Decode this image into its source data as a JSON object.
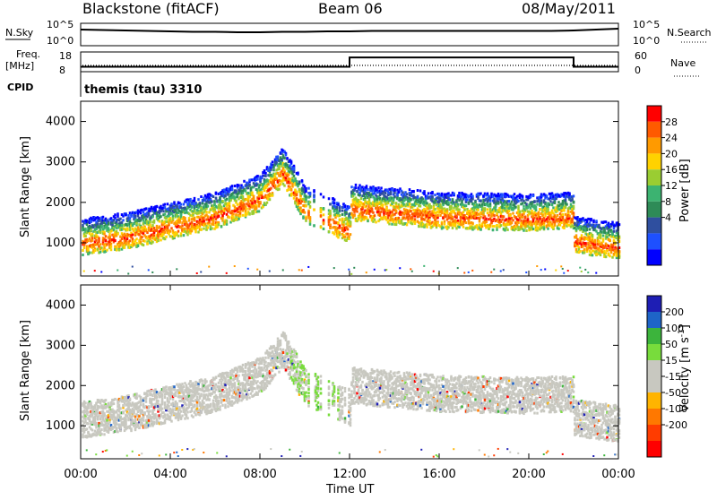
{
  "header": {
    "station": "Blackstone (fitACF)",
    "beam": "Beam 06",
    "date": "08/May/2011"
  },
  "noise_panel": {
    "left_label": "N.Sky",
    "right_label": "N.Search",
    "tick_top": "10^5",
    "tick_bottom": "10^0"
  },
  "freq_panel": {
    "left_label_1": "Freq.",
    "left_label_2": "[MHz]",
    "right_label": "Nave",
    "left_ticks": [
      "18",
      "8"
    ],
    "right_ticks": [
      "60",
      "0"
    ]
  },
  "cpid": {
    "label": "CPID",
    "value": "themis (tau) 3310"
  },
  "power_panel": {
    "ylabel": "Slant Range [km]",
    "yticks": [
      "4000",
      "3000",
      "2000",
      "1000"
    ],
    "colorbar_title": "Power [dB]",
    "colorbar_ticks": [
      "28",
      "24",
      "20",
      "16",
      "12",
      "8",
      "4"
    ]
  },
  "velocity_panel": {
    "ylabel": "Slant Range [km]",
    "yticks": [
      "4000",
      "3000",
      "2000",
      "1000"
    ],
    "colorbar_title": "Velocity [m s",
    "colorbar_title_sup": "-1",
    "colorbar_title_end": "]",
    "colorbar_ticks": [
      "200",
      "100",
      "50",
      "15",
      "-15",
      "-50",
      "-100",
      "-200"
    ]
  },
  "xaxis": {
    "label": "Time UT",
    "ticks": [
      "00:00",
      "04:00",
      "08:00",
      "12:00",
      "16:00",
      "20:00",
      "00:00"
    ]
  },
  "colors": {
    "power_scale": [
      "#ff0000",
      "#ff5a00",
      "#ff9a00",
      "#ffd200",
      "#9acd32",
      "#3cb371",
      "#2e8b57",
      "#2f4f9f",
      "#1e50ff",
      "#0000ff"
    ],
    "velocity_scale": [
      "#1e1eb4",
      "#1e64c8",
      "#3cb43c",
      "#78dc3c",
      "#c8c8c0",
      "#c8c8c0",
      "#ffb400",
      "#ff7800",
      "#ff3c00",
      "#ff0000"
    ],
    "ground_scatter": "#c8c8c0"
  },
  "chart_data": [
    {
      "type": "line",
      "title": "",
      "series": [
        {
          "name": "N.Sky",
          "x": [
            0,
            1,
            2,
            3,
            4,
            5,
            6,
            7,
            8,
            9,
            10,
            11,
            12,
            13,
            14,
            15,
            16,
            17,
            18,
            19,
            20,
            21,
            22,
            23,
            24
          ],
          "values": [
            3.6,
            3.5,
            3.4,
            3.3,
            3.2,
            3.1,
            3.1,
            3.0,
            3.0,
            3.1,
            3.1,
            3.2,
            3.2,
            3.3,
            3.3,
            3.3,
            3.3,
            3.3,
            3.3,
            3.3,
            3.3,
            3.3,
            3.4,
            3.6,
            3.8
          ]
        }
      ],
      "xlim": [
        0,
        24
      ],
      "ylim": [
        0,
        5
      ]
    },
    {
      "type": "line",
      "series": [
        {
          "name": "Freq.",
          "x": [
            0,
            12,
            12,
            22,
            22,
            24
          ],
          "values": [
            10.5,
            10.5,
            15.2,
            15.2,
            10.5,
            10.5
          ]
        },
        {
          "name": "Nave",
          "x": [
            0,
            24
          ],
          "values": [
            15,
            15
          ]
        }
      ],
      "xlim": [
        0,
        24
      ],
      "ylim": [
        8,
        18
      ]
    },
    {
      "type": "heatmap",
      "xlabel": "Time UT",
      "ylabel": "Slant Range [km]",
      "ylim": [
        180,
        4500
      ],
      "xlim": [
        0,
        24
      ],
      "colorbar": "Power [dB]",
      "main_band_range_km": [
        [
          0,
          1000
        ],
        [
          2,
          1150
        ],
        [
          4,
          1400
        ],
        [
          6,
          1650
        ],
        [
          8,
          2100
        ],
        [
          9,
          2750
        ],
        [
          10,
          1800
        ],
        [
          12,
          1300
        ],
        [
          12,
          1850
        ],
        [
          16,
          1650
        ],
        [
          20,
          1600
        ],
        [
          22,
          1650
        ],
        [
          22,
          1050
        ],
        [
          24,
          900
        ]
      ]
    },
    {
      "type": "heatmap",
      "xlabel": "Time UT",
      "ylabel": "Slant Range [km]",
      "ylim": [
        180,
        4500
      ],
      "xlim": [
        0,
        24
      ],
      "colorbar": "Velocity [m s-1]"
    }
  ]
}
